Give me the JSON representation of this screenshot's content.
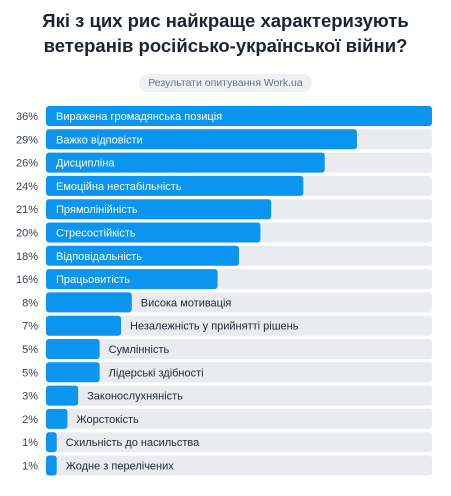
{
  "title_line1": "Які з цих рис найкраще характеризують",
  "title_line2": "ветеранів російсько-української війни?",
  "subtitle": "Результати опитування Work.ua",
  "colors": {
    "bar": "#0b95f0",
    "track": "#e9ebee",
    "label_on_bar": "#ffffff",
    "label_off_bar": "#1f2733"
  },
  "chart_data": {
    "type": "bar",
    "orientation": "horizontal",
    "categories": [
      "Виражена громадянська позиція",
      "Важко відповісти",
      "Дисципліна",
      "Емоційна нестабільність",
      "Прямолінійність",
      "Стресостійкість",
      "Відповідальність",
      "Працьовитість",
      "Висока мотивація",
      "Незалежність у прийнятті рішень",
      "Сумлінність",
      "Лідерські здібності",
      "Законослухняність",
      "Жорстокість",
      "Схильність до насильства",
      "Жодне з перелічених"
    ],
    "values": [
      36,
      29,
      26,
      24,
      21,
      20,
      18,
      16,
      8,
      7,
      5,
      5,
      3,
      2,
      1,
      1
    ],
    "value_labels": [
      "36%",
      "29%",
      "26%",
      "24%",
      "21%",
      "20%",
      "18%",
      "16%",
      "8%",
      "7%",
      "5%",
      "5%",
      "3%",
      "2%",
      "1%",
      "1%"
    ],
    "xlim": [
      0,
      36
    ]
  }
}
